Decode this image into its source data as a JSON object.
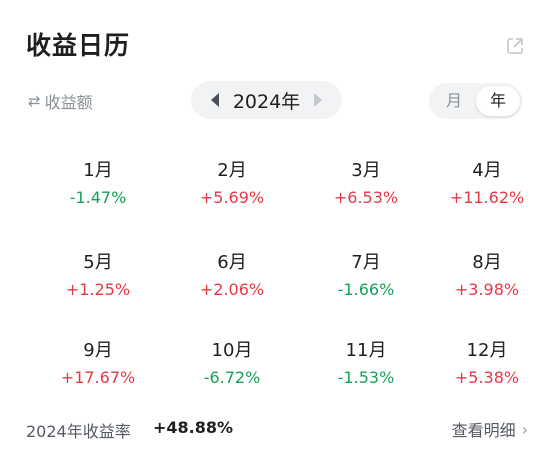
{
  "header": {
    "title": "收益日历"
  },
  "controls": {
    "metric_toggle": "收益额",
    "year": "2024年",
    "seg_month": "月",
    "seg_year": "年"
  },
  "months": [
    {
      "label": "1月",
      "value": "-1.47%",
      "dir": "neg"
    },
    {
      "label": "2月",
      "value": "+5.69%",
      "dir": "pos"
    },
    {
      "label": "3月",
      "value": "+6.53%",
      "dir": "pos"
    },
    {
      "label": "4月",
      "value": "+11.62%",
      "dir": "pos"
    },
    {
      "label": "5月",
      "value": "+1.25%",
      "dir": "pos"
    },
    {
      "label": "6月",
      "value": "+2.06%",
      "dir": "pos"
    },
    {
      "label": "7月",
      "value": "-1.66%",
      "dir": "neg"
    },
    {
      "label": "8月",
      "value": "+3.98%",
      "dir": "pos"
    },
    {
      "label": "9月",
      "value": "+17.67%",
      "dir": "pos"
    },
    {
      "label": "10月",
      "value": "-6.72%",
      "dir": "neg"
    },
    {
      "label": "11月",
      "value": "-1.53%",
      "dir": "neg"
    },
    {
      "label": "12月",
      "value": "+5.38%",
      "dir": "pos"
    }
  ],
  "footer": {
    "label": "2024年收益率",
    "value": "+48.88%",
    "detail": "查看明细"
  },
  "colors": {
    "positive": "#e63946",
    "negative": "#18a058"
  }
}
